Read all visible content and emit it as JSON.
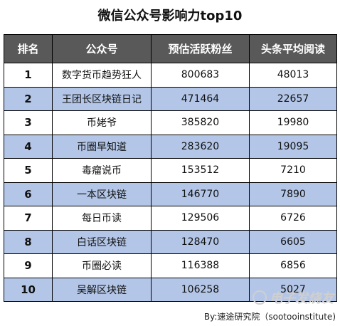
{
  "title": "微信公众号影响力top10",
  "chart_data": {
    "type": "table",
    "title": "微信公众号影响力top10",
    "columns": [
      "排名",
      "公众号",
      "预估活跃粉丝",
      "头条平均阅读"
    ],
    "rows": [
      {
        "rank": "1",
        "account": "数字货币趋势狂人",
        "fans": "800683",
        "reads": "48013"
      },
      {
        "rank": "2",
        "account": "王团长区块链日记",
        "fans": "471464",
        "reads": "22657"
      },
      {
        "rank": "3",
        "account": "币姥爷",
        "fans": "385820",
        "reads": "19980"
      },
      {
        "rank": "4",
        "account": "币圈早知道",
        "fans": "283620",
        "reads": "19095"
      },
      {
        "rank": "5",
        "account": "毒瘤说币",
        "fans": "153512",
        "reads": "7210"
      },
      {
        "rank": "6",
        "account": "一本区块链",
        "fans": "146770",
        "reads": "7890"
      },
      {
        "rank": "7",
        "account": "每日币读",
        "fans": "129506",
        "reads": "6726"
      },
      {
        "rank": "8",
        "account": "白话区块链",
        "fans": "128470",
        "reads": "6605"
      },
      {
        "rank": "9",
        "account": "币圈必读",
        "fans": "116388",
        "reads": "6856"
      },
      {
        "rank": "10",
        "account": "吴解区块链",
        "fans": "106258",
        "reads": "5027"
      }
    ],
    "header_bg": "#595959",
    "stripe_bg": "#b4c6e7"
  },
  "source": "By:速途研究院（sootooinstitute)",
  "watermark": "电子发烧友"
}
